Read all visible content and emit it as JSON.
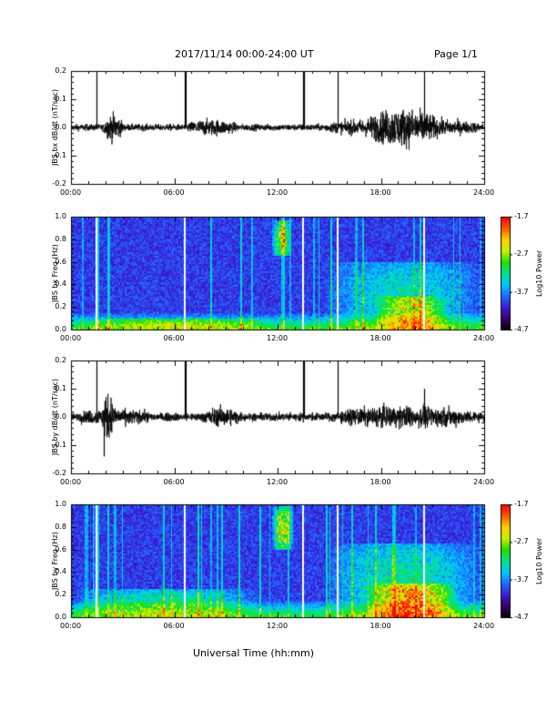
{
  "header": {
    "date_range": "2017/11/14   00:00-24:00 UT",
    "page": "Page 1/1"
  },
  "footer": {
    "x_axis_title": "Universal Time (hh:mm)"
  },
  "colors": {
    "trace": "#000000",
    "colormap": [
      "#000000",
      "#3a0070",
      "#3b1cd6",
      "#1f6cff",
      "#00c8ff",
      "#00e68c",
      "#1ee000",
      "#c8f000",
      "#ffd000",
      "#ff5a00",
      "#ff0000"
    ]
  },
  "chart_data": [
    {
      "id": "bx-derivative",
      "type": "line",
      "ylabel": "JBS bx dB/dt (nT/sec)",
      "x_ticks": [
        "00:00",
        "06:00",
        "12:00",
        "18:00",
        "24:00"
      ],
      "xlim_hours": [
        0,
        24
      ],
      "ylim": [
        -0.2,
        0.2
      ],
      "y_ticks": [
        "-0.2",
        "-0.1",
        "0.0",
        "0.1",
        "0.2"
      ],
      "baseline_amplitude": 0.012,
      "activity": [
        {
          "start": 1.9,
          "end": 3.0,
          "amplitude": 0.05
        },
        {
          "start": 6.5,
          "end": 9.8,
          "amplitude": 0.03
        },
        {
          "start": 14.6,
          "end": 24.0,
          "amplitude": 0.035
        },
        {
          "start": 17.0,
          "end": 21.5,
          "amplitude": 0.07
        }
      ],
      "spikes": [
        {
          "hour": 1.5,
          "top": 0.2,
          "bottom": 0.0
        },
        {
          "hour": 6.6,
          "top": 0.2,
          "bottom": 0.0
        },
        {
          "hour": 6.65,
          "top": 0.2,
          "bottom": 0.0
        },
        {
          "hour": 13.5,
          "top": 0.2,
          "bottom": 0.0
        },
        {
          "hour": 13.55,
          "top": 0.2,
          "bottom": 0.0
        },
        {
          "hour": 15.5,
          "top": 0.2,
          "bottom": 0.0
        },
        {
          "hour": 20.5,
          "top": 0.2,
          "bottom": 0.0
        }
      ]
    },
    {
      "id": "bx-spectrogram",
      "type": "heatmap",
      "ylabel": "JBS bx Freq (Hz)",
      "x_ticks": [
        "00:00",
        "06:00",
        "12:00",
        "18:00",
        "24:00"
      ],
      "xlim_hours": [
        0,
        24
      ],
      "ylim": [
        0.0,
        1.0
      ],
      "y_ticks": [
        "0.0",
        "0.2",
        "0.4",
        "0.6",
        "0.8",
        "1.0"
      ],
      "colorbar": {
        "label": "Log10 Power",
        "range": [
          -4.7,
          -1.7
        ],
        "ticks": [
          "-1.7",
          "-2.7",
          "-3.7",
          "-4.7"
        ]
      },
      "gaps_hours": [
        1.5,
        6.6,
        13.5,
        15.5,
        20.5
      ],
      "features": [
        {
          "t0": 11.6,
          "t1": 12.8,
          "f0": 0.65,
          "f1": 0.97,
          "strength": 0.5
        },
        {
          "t0": 14.6,
          "t1": 24.0,
          "f0": 0.0,
          "f1": 0.6,
          "strength": 0.25
        },
        {
          "t0": 17.5,
          "t1": 22.0,
          "f0": 0.0,
          "f1": 0.3,
          "strength": 0.35
        },
        {
          "t0": 0.0,
          "t1": 12.0,
          "f0": 0.0,
          "f1": 0.1,
          "strength": 0.25
        }
      ]
    },
    {
      "id": "by-derivative",
      "type": "line",
      "ylabel": "JBS by dB/dt (nT/sec)",
      "x_ticks": [
        "00:00",
        "06:00",
        "12:00",
        "18:00",
        "24:00"
      ],
      "xlim_hours": [
        0,
        24
      ],
      "ylim": [
        -0.2,
        0.2
      ],
      "y_ticks": [
        "-0.2",
        "-0.1",
        "0.0",
        "0.1",
        "0.2"
      ],
      "baseline_amplitude": 0.015,
      "activity": [
        {
          "start": 0.0,
          "end": 5.0,
          "amplitude": 0.03
        },
        {
          "start": 1.8,
          "end": 2.5,
          "amplitude": 0.09
        },
        {
          "start": 7.5,
          "end": 10.0,
          "amplitude": 0.035
        },
        {
          "start": 15.0,
          "end": 24.0,
          "amplitude": 0.04
        }
      ],
      "spikes": [
        {
          "hour": 1.5,
          "top": 0.2,
          "bottom": 0.0
        },
        {
          "hour": 6.6,
          "top": 0.2,
          "bottom": 0.0
        },
        {
          "hour": 6.65,
          "top": 0.2,
          "bottom": 0.0
        },
        {
          "hour": 13.5,
          "top": 0.2,
          "bottom": 0.0
        },
        {
          "hour": 13.55,
          "top": 0.2,
          "bottom": 0.0
        },
        {
          "hour": 15.5,
          "top": 0.2,
          "bottom": 0.0
        },
        {
          "hour": 20.5,
          "top": 0.1,
          "bottom": 0.0
        },
        {
          "hour": 1.9,
          "top": 0.0,
          "bottom": -0.14
        }
      ]
    },
    {
      "id": "by-spectrogram",
      "type": "heatmap",
      "ylabel": "JBS by Freq (Hz)",
      "x_ticks": [
        "00:00",
        "06:00",
        "12:00",
        "18:00",
        "24:00"
      ],
      "xlim_hours": [
        0,
        24
      ],
      "ylim": [
        0.0,
        1.0
      ],
      "y_ticks": [
        "0.0",
        "0.2",
        "0.4",
        "0.6",
        "0.8",
        "1.0"
      ],
      "colorbar": {
        "label": "Log10 Power",
        "range": [
          -4.7,
          -1.7
        ],
        "ticks": [
          "-1.7",
          "-2.7",
          "-3.7",
          "-4.7"
        ]
      },
      "gaps_hours": [
        1.5,
        6.6,
        13.5,
        15.5,
        20.5
      ],
      "features": [
        {
          "t0": 11.6,
          "t1": 12.9,
          "f0": 0.6,
          "f1": 0.98,
          "strength": 0.55
        },
        {
          "t0": 14.6,
          "t1": 24.0,
          "f0": 0.0,
          "f1": 0.65,
          "strength": 0.3
        },
        {
          "t0": 17.0,
          "t1": 22.5,
          "f0": 0.0,
          "f1": 0.3,
          "strength": 0.45
        },
        {
          "t0": 0.0,
          "t1": 11.0,
          "f0": 0.0,
          "f1": 0.25,
          "strength": 0.3
        }
      ]
    }
  ]
}
